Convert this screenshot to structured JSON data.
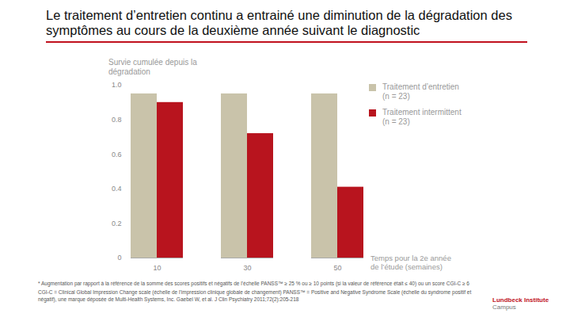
{
  "chart_data": {
    "type": "bar",
    "title": "Le traitement d’entretien continu a entrainé une diminution de la dégradation des symptômes au cours de la deuxième année suivant le diagnostic",
    "y_label": "Survie cumulée depuis la dégradation",
    "x_label": "Temps pour la 2e année de l’étude (semaines)",
    "categories": [
      10,
      30,
      50
    ],
    "series": [
      {
        "name": "Traitement d’entretien (n = 23)",
        "color": "#c9c3aa",
        "values": [
          0.95,
          0.95,
          0.95
        ]
      },
      {
        "name": "Traitement intermittent (n = 23)",
        "color": "#b8141e",
        "values": [
          0.9,
          0.72,
          0.41
        ]
      }
    ],
    "ylim": [
      0,
      1
    ],
    "yticks": [
      0,
      0.2,
      0.4,
      0.6,
      0.8,
      {
        "value": 1,
        "label": "1.0"
      }
    ],
    "grid": false,
    "legend": "right",
    "notes": [
      "* Augmentation par rapport à la référence de la somme des scores positifs et négatifs de l’échelle PANSS™ ≥ 25 % ou ≥ 10 points (si la valeur de référence était ≤ 40) ou un score CGI-C ≥ 6",
      "CGI-C = Clinical Global Impression Change scale (échelle de l’impression clinique globale de changement)   PANSS™ = Positive and Negative Syndrome Scale (échelle du syndrome positif et négatif), une marque déposée de Multi-Health Systems, Inc. Gaebel W, et al. J Clin Psychiatry 2011;72(2):205-218"
    ],
    "logo": [
      "Lundbeck Institute",
      "Campus"
    ]
  }
}
